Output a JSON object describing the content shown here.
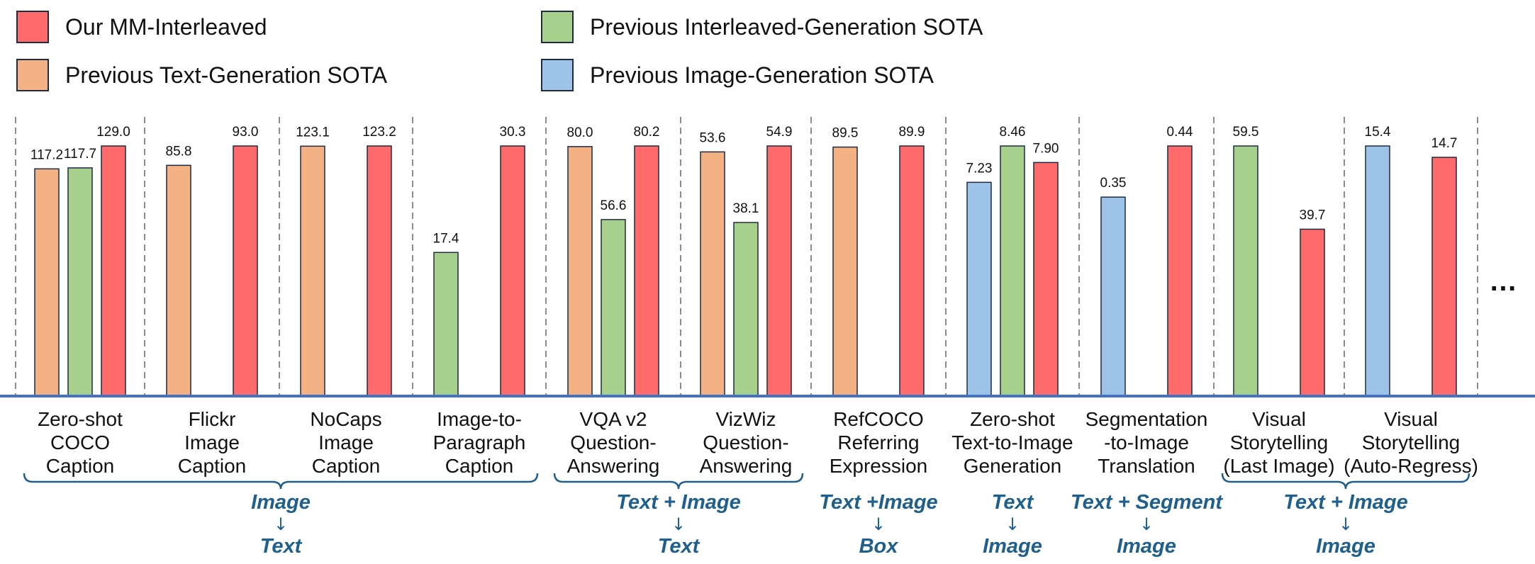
{
  "chart_data": {
    "type": "bar",
    "legend": [
      {
        "key": "ours",
        "label": "Our MM-Interleaved",
        "color": "#ff6b6b"
      },
      {
        "key": "interleaved",
        "label": "Previous Interleaved-Generation SOTA",
        "color": "#a8d08d"
      },
      {
        "key": "text",
        "label": "Previous Text-Generation SOTA",
        "color": "#f4b183"
      },
      {
        "key": "image",
        "label": "Previous Image-Generation SOTA",
        "color": "#9dc3e6"
      }
    ],
    "groups": [
      {
        "label": [
          "Zero-shot",
          "COCO",
          "Caption"
        ],
        "bars": [
          {
            "series": "text",
            "value": 117.2,
            "label": "117.2"
          },
          {
            "series": "interleaved",
            "value": 117.7,
            "label": "117.7"
          },
          {
            "series": "ours",
            "value": 129.0,
            "label": "129.0"
          }
        ]
      },
      {
        "label": [
          "Flickr",
          "Image",
          "Caption"
        ],
        "bars": [
          {
            "series": "text",
            "value": 85.8,
            "label": "85.8"
          },
          {
            "series": "ours",
            "value": 93.0,
            "label": "93.0"
          }
        ]
      },
      {
        "label": [
          "NoCaps",
          "Image",
          "Caption"
        ],
        "bars": [
          {
            "series": "text",
            "value": 123.1,
            "label": "123.1"
          },
          {
            "series": "ours",
            "value": 123.2,
            "label": "123.2"
          }
        ]
      },
      {
        "label": [
          "Image-to-",
          "Paragraph",
          "Caption"
        ],
        "bars": [
          {
            "series": "interleaved",
            "value": 17.4,
            "label": "17.4"
          },
          {
            "series": "ours",
            "value": 30.3,
            "label": "30.3"
          }
        ]
      },
      {
        "label": [
          "VQA v2",
          "Question-",
          "Answering"
        ],
        "bars": [
          {
            "series": "text",
            "value": 80.0,
            "label": "80.0"
          },
          {
            "series": "interleaved",
            "value": 56.6,
            "label": "56.6"
          },
          {
            "series": "ours",
            "value": 80.2,
            "label": "80.2"
          }
        ]
      },
      {
        "label": [
          "VizWiz",
          "Question-",
          "Answering"
        ],
        "bars": [
          {
            "series": "text",
            "value": 53.6,
            "label": "53.6"
          },
          {
            "series": "interleaved",
            "value": 38.1,
            "label": "38.1"
          },
          {
            "series": "ours",
            "value": 54.9,
            "label": "54.9"
          }
        ]
      },
      {
        "label": [
          "RefCOCO",
          "Referring",
          "Expression"
        ],
        "bars": [
          {
            "series": "text",
            "value": 89.5,
            "label": "89.5"
          },
          {
            "series": "ours",
            "value": 89.9,
            "label": "89.9"
          }
        ]
      },
      {
        "label": [
          "Zero-shot",
          "Text-to-Image",
          "Generation"
        ],
        "bars": [
          {
            "series": "image",
            "value": 7.23,
            "label": "7.23"
          },
          {
            "series": "interleaved",
            "value": 8.46,
            "label": "8.46"
          },
          {
            "series": "ours",
            "value": 7.9,
            "label": "7.90"
          }
        ]
      },
      {
        "label": [
          "Segmentation",
          "-to-Image",
          "Translation"
        ],
        "bars": [
          {
            "series": "image",
            "value": 0.35,
            "label": "0.35"
          },
          {
            "series": "ours",
            "value": 0.44,
            "label": "0.44"
          }
        ]
      },
      {
        "label": [
          "Visual",
          "Storytelling",
          "(Last Image)"
        ],
        "bars": [
          {
            "series": "interleaved",
            "value": 59.5,
            "label": "59.5"
          },
          {
            "series": "ours",
            "value": 39.7,
            "label": "39.7"
          }
        ]
      },
      {
        "label": [
          "Visual",
          "Storytelling",
          "(Auto-Regress)"
        ],
        "bars": [
          {
            "series": "image",
            "value": 15.4,
            "label": "15.4"
          },
          {
            "series": "ours",
            "value": 14.7,
            "label": "14.7"
          }
        ]
      }
    ],
    "modalities": [
      {
        "from_group": 0,
        "to_group": 3,
        "lines": [
          "Image",
          "↓",
          "Text"
        ]
      },
      {
        "from_group": 4,
        "to_group": 5,
        "lines": [
          "Text + Image",
          "↓",
          "Text"
        ]
      },
      {
        "from_group": 6,
        "to_group": 6,
        "lines": [
          "Text +Image",
          "↓",
          "Box"
        ]
      },
      {
        "from_group": 7,
        "to_group": 7,
        "lines": [
          "Text",
          "↓",
          "Image"
        ]
      },
      {
        "from_group": 8,
        "to_group": 8,
        "lines": [
          "Text + Segment",
          "↓",
          "Image"
        ]
      },
      {
        "from_group": 9,
        "to_group": 10,
        "lines": [
          "Text + Image",
          "↓",
          "Image"
        ]
      }
    ],
    "ellipsis": "…"
  }
}
